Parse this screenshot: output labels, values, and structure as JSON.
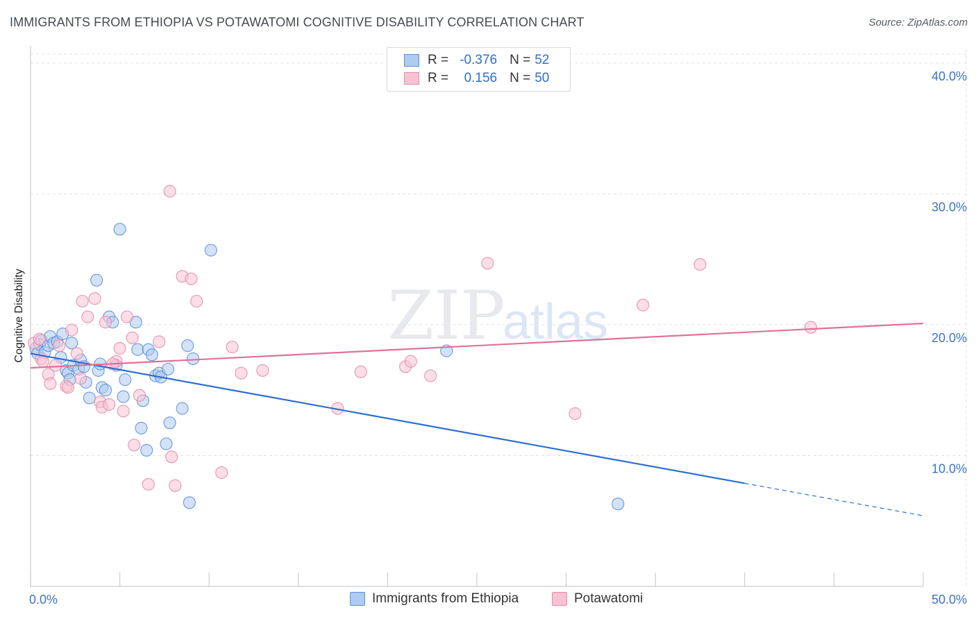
{
  "header": {
    "title": "IMMIGRANTS FROM ETHIOPIA VS POTAWATOMI COGNITIVE DISABILITY CORRELATION CHART",
    "source": "Source: ZipAtlas.com"
  },
  "watermark": {
    "zip": "ZIP",
    "atlas": "atlas"
  },
  "legend": {
    "r_label": "R =",
    "n_label": "N =",
    "rows": [
      {
        "r": "-0.376",
        "n": "52"
      },
      {
        "r": "0.156",
        "n": "50"
      }
    ]
  },
  "colors": {
    "blue_fill": "#aecbf0",
    "blue_stroke": "#5b8fd6",
    "blue_line": "#2a6fcf",
    "pink_fill": "#f7c3d3",
    "pink_stroke": "#e58aa8",
    "pink_line": "#e0709a",
    "tick_label": "#3b73c7",
    "grid": "#dde1e6"
  },
  "chart_data": {
    "type": "scatter",
    "title": "IMMIGRANTS FROM ETHIOPIA VS POTAWATOMI COGNITIVE DISABILITY CORRELATION CHART",
    "ylabel": "Cognitive Disability",
    "xlim": [
      0,
      50
    ],
    "ylim": [
      0,
      41
    ],
    "x_tick_labels": [
      {
        "value": 0,
        "label": "0.0%"
      },
      {
        "value": 50,
        "label": "50.0%"
      }
    ],
    "y_tick_labels": [
      {
        "value": 10,
        "label": "10.0%"
      },
      {
        "value": 20,
        "label": "20.0%"
      },
      {
        "value": 30,
        "label": "30.0%"
      },
      {
        "value": 40,
        "label": "40.0%"
      }
    ],
    "grid": true,
    "legend_position": "top-center",
    "series": [
      {
        "name": "Immigrants from Ethiopia",
        "r": -0.376,
        "n": 52,
        "trend": {
          "x_start": 0,
          "y_start": 17.8,
          "x_solid_end": 40,
          "x_end": 50,
          "y_end": 5.4
        },
        "points": [
          [
            0.3,
            18.2
          ],
          [
            0.4,
            17.8
          ],
          [
            0.5,
            18.5
          ],
          [
            0.6,
            18.8
          ],
          [
            0.8,
            17.9
          ],
          [
            1.0,
            18.4
          ],
          [
            1.1,
            19.1
          ],
          [
            1.3,
            18.6
          ],
          [
            1.5,
            18.7
          ],
          [
            1.7,
            17.5
          ],
          [
            1.8,
            19.3
          ],
          [
            2.0,
            16.5
          ],
          [
            2.1,
            16.3
          ],
          [
            2.2,
            15.8
          ],
          [
            2.3,
            18.6
          ],
          [
            2.4,
            16.9
          ],
          [
            2.7,
            16.6
          ],
          [
            2.8,
            17.3
          ],
          [
            3.0,
            16.8
          ],
          [
            3.1,
            15.6
          ],
          [
            3.3,
            14.4
          ],
          [
            3.7,
            23.4
          ],
          [
            3.8,
            16.5
          ],
          [
            3.9,
            17.0
          ],
          [
            4.0,
            15.2
          ],
          [
            4.2,
            15.0
          ],
          [
            4.4,
            20.6
          ],
          [
            4.6,
            20.2
          ],
          [
            4.8,
            16.9
          ],
          [
            5.0,
            27.3
          ],
          [
            5.3,
            15.8
          ],
          [
            5.2,
            14.5
          ],
          [
            5.9,
            20.2
          ],
          [
            6.0,
            18.1
          ],
          [
            6.2,
            12.1
          ],
          [
            6.3,
            14.2
          ],
          [
            6.5,
            10.4
          ],
          [
            6.6,
            18.1
          ],
          [
            6.8,
            17.7
          ],
          [
            7.0,
            16.1
          ],
          [
            7.2,
            16.3
          ],
          [
            7.3,
            16.0
          ],
          [
            7.6,
            10.9
          ],
          [
            7.7,
            16.6
          ],
          [
            7.8,
            12.5
          ],
          [
            8.5,
            13.6
          ],
          [
            8.8,
            18.4
          ],
          [
            9.1,
            17.4
          ],
          [
            10.1,
            25.7
          ],
          [
            8.9,
            6.4
          ],
          [
            23.3,
            18.0
          ],
          [
            32.9,
            6.3
          ]
        ]
      },
      {
        "name": "Potawatomi",
        "r": 0.156,
        "n": 50,
        "trend": {
          "x_start": 0,
          "y_start": 16.7,
          "x_end": 50,
          "y_end": 20.1
        },
        "points": [
          [
            0.2,
            18.6
          ],
          [
            0.5,
            18.9
          ],
          [
            0.6,
            17.4
          ],
          [
            0.7,
            17.2
          ],
          [
            1.0,
            16.2
          ],
          [
            1.1,
            15.5
          ],
          [
            1.4,
            16.9
          ],
          [
            1.6,
            18.4
          ],
          [
            2.0,
            15.3
          ],
          [
            2.1,
            15.2
          ],
          [
            2.3,
            19.6
          ],
          [
            2.6,
            17.8
          ],
          [
            2.8,
            15.9
          ],
          [
            2.9,
            21.8
          ],
          [
            3.2,
            20.6
          ],
          [
            3.6,
            22.0
          ],
          [
            3.9,
            14.1
          ],
          [
            4.0,
            13.7
          ],
          [
            4.2,
            20.2
          ],
          [
            4.4,
            13.9
          ],
          [
            4.8,
            17.2
          ],
          [
            5.0,
            18.2
          ],
          [
            5.2,
            13.4
          ],
          [
            5.4,
            20.6
          ],
          [
            5.7,
            19.0
          ],
          [
            5.8,
            10.8
          ],
          [
            6.1,
            14.6
          ],
          [
            6.6,
            7.8
          ],
          [
            7.2,
            18.7
          ],
          [
            7.8,
            30.2
          ],
          [
            7.9,
            9.9
          ],
          [
            8.1,
            7.7
          ],
          [
            8.5,
            23.7
          ],
          [
            9.0,
            23.5
          ],
          [
            9.3,
            21.8
          ],
          [
            10.7,
            8.7
          ],
          [
            11.3,
            18.3
          ],
          [
            11.8,
            16.3
          ],
          [
            13.0,
            16.5
          ],
          [
            17.2,
            13.6
          ],
          [
            18.5,
            16.4
          ],
          [
            21.0,
            16.8
          ],
          [
            21.3,
            17.2
          ],
          [
            22.4,
            16.1
          ],
          [
            25.6,
            24.7
          ],
          [
            30.5,
            13.2
          ],
          [
            34.3,
            21.5
          ],
          [
            37.5,
            24.6
          ],
          [
            43.7,
            19.8
          ],
          [
            4.6,
            17.0
          ]
        ]
      }
    ]
  }
}
